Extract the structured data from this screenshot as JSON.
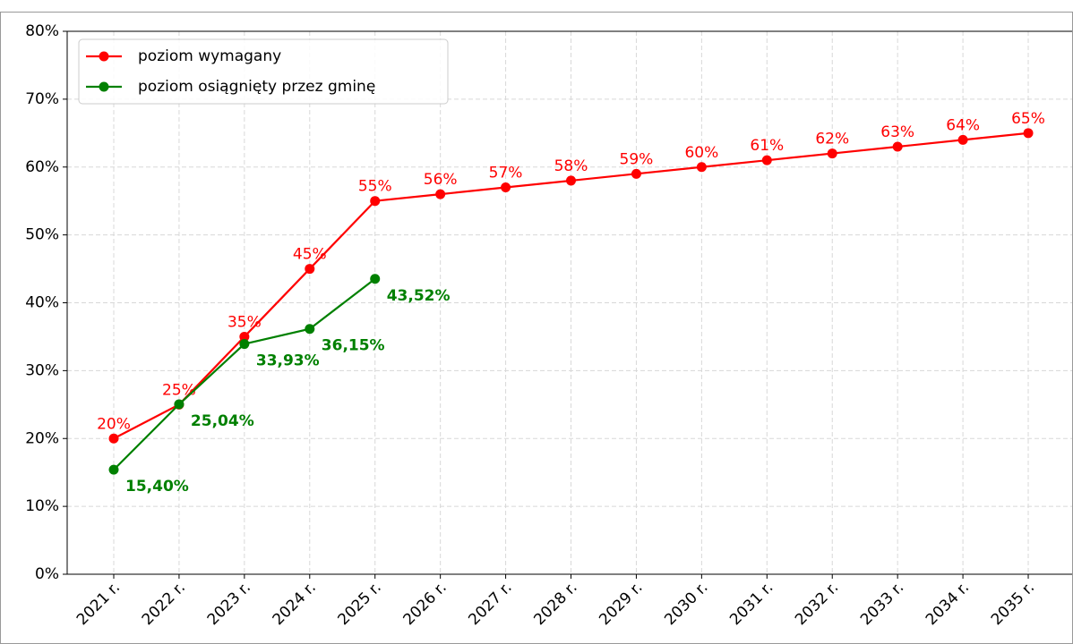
{
  "chart_data": {
    "type": "line",
    "categories": [
      "2021 r.",
      "2022 r.",
      "2023 r.",
      "2024 r.",
      "2025 r.",
      "2026 r.",
      "2027 r.",
      "2028 r.",
      "2029 r.",
      "2030 r.",
      "2031 r.",
      "2032 r.",
      "2033 r.",
      "2034 r.",
      "2035 r."
    ],
    "series": [
      {
        "name": "poziom wymagany",
        "color": "#ff0000",
        "values": [
          20,
          25,
          35,
          45,
          55,
          56,
          57,
          58,
          59,
          60,
          61,
          62,
          63,
          64,
          65
        ],
        "value_labels": [
          "20%",
          "25%",
          "35%",
          "45%",
          "55%",
          "56%",
          "57%",
          "58%",
          "59%",
          "60%",
          "61%",
          "62%",
          "63%",
          "64%",
          "65%"
        ]
      },
      {
        "name": "poziom osiągnięty przez gminę",
        "color": "#008000",
        "values": [
          15.4,
          25.04,
          33.93,
          36.15,
          43.52,
          null,
          null,
          null,
          null,
          null,
          null,
          null,
          null,
          null,
          null
        ],
        "value_labels": [
          "15,40%",
          "25,04%",
          "33,93%",
          "36,15%",
          "43,52%",
          null,
          null,
          null,
          null,
          null,
          null,
          null,
          null,
          null,
          null
        ]
      }
    ],
    "ylim": [
      0,
      80
    ],
    "yticks": [
      {
        "value": 0,
        "label": "0%"
      },
      {
        "value": 10,
        "label": "10%"
      },
      {
        "value": 20,
        "label": "20%"
      },
      {
        "value": 30,
        "label": "30%"
      },
      {
        "value": 40,
        "label": "40%"
      },
      {
        "value": 50,
        "label": "50%"
      },
      {
        "value": 60,
        "label": "60%"
      },
      {
        "value": 70,
        "label": "70%"
      },
      {
        "value": 80,
        "label": "80%"
      }
    ],
    "grid": true,
    "legend": "upper left"
  }
}
